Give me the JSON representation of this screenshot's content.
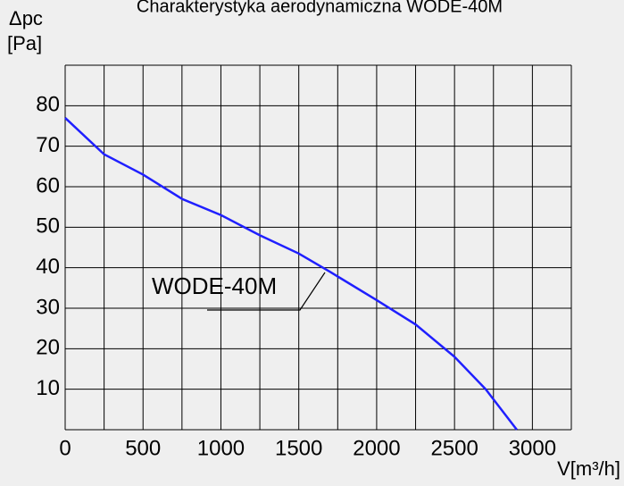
{
  "chart_data": {
    "type": "line",
    "title": "Charakterystyka aerodynamiczna WODE-40M",
    "y_label": "Δpc",
    "y_unit": "[Pa]",
    "x_label": "V[m³/h]",
    "annotation": "WODE-40M",
    "x": [
      0,
      250,
      500,
      750,
      1000,
      1250,
      1500,
      1700,
      2000,
      2250,
      2500,
      2700,
      2900
    ],
    "series": [
      {
        "name": "WODE-40M",
        "color": "#1f1fff",
        "values": [
          77,
          68,
          63,
          57,
          53,
          48,
          43.5,
          39,
          32,
          26,
          18,
          10,
          0
        ]
      }
    ],
    "xlim": [
      0,
      3250
    ],
    "ylim": [
      0,
      90
    ],
    "xticks": [
      0,
      500,
      1000,
      1500,
      2000,
      2500,
      3000
    ],
    "xgrid": [
      0,
      250,
      500,
      750,
      1000,
      1250,
      1500,
      1750,
      2000,
      2250,
      2500,
      2750,
      3000,
      3250
    ],
    "yticks": [
      10,
      20,
      30,
      40,
      50,
      60,
      70,
      80
    ],
    "ygrid": [
      0,
      10,
      20,
      30,
      40,
      50,
      60,
      70,
      80,
      90
    ],
    "grid": true
  }
}
